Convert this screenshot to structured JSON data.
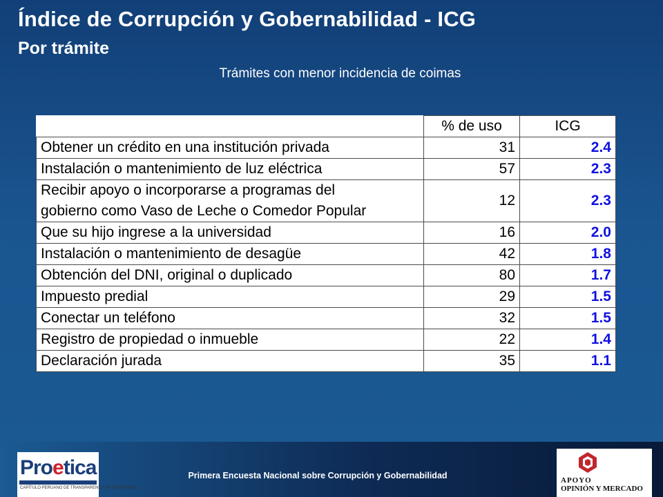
{
  "header": {
    "title": "Índice de Corrupción y Gobernabilidad - ICG",
    "subtitle": "Por trámite",
    "caption": "Trámites con menor incidencia de coimas"
  },
  "table": {
    "columns": [
      "% de uso",
      "ICG"
    ],
    "rows": [
      {
        "name": "Obtener un crédito en una institución privada",
        "uso": "31",
        "icg": "2.4"
      },
      {
        "name": "Instalación o mantenimiento de luz eléctrica",
        "uso": "57",
        "icg": "2.3"
      },
      {
        "name_line1": "Recibir apoyo o incorporarse a programas del",
        "name_line2": "gobierno como Vaso de Leche o Comedor Popular",
        "uso": "12",
        "icg": "2.3"
      },
      {
        "name": "Que su hijo ingrese a la universidad",
        "uso": "16",
        "icg": "2.0"
      },
      {
        "name": "Instalación o mantenimiento de desagüe",
        "uso": "42",
        "icg": "1.8"
      },
      {
        "name": "Obtención del DNI, original o duplicado",
        "uso": "80",
        "icg": "1.7"
      },
      {
        "name": "Impuesto predial",
        "uso": "29",
        "icg": "1.5"
      },
      {
        "name": "Conectar un teléfono",
        "uso": "32",
        "icg": "1.5"
      },
      {
        "name": "Registro de propiedad o inmueble",
        "uso": "22",
        "icg": "1.4"
      },
      {
        "name": "Declaración jurada",
        "uso": "35",
        "icg": "1.1"
      }
    ],
    "icg_color": "#1010e0"
  },
  "footer": {
    "text": "Primera Encuesta Nacional sobre Corrupción y Gobernabilidad",
    "logo_left": {
      "word_a": "Pro",
      "word_b": "e",
      "word_c": "tica",
      "small": "CAPÍTULO PERUANO DE TRANSPARENCY INTERNATIONAL"
    },
    "logo_right": {
      "line1": "APOYO",
      "line2": "OPINIÓN Y MERCADO"
    }
  }
}
